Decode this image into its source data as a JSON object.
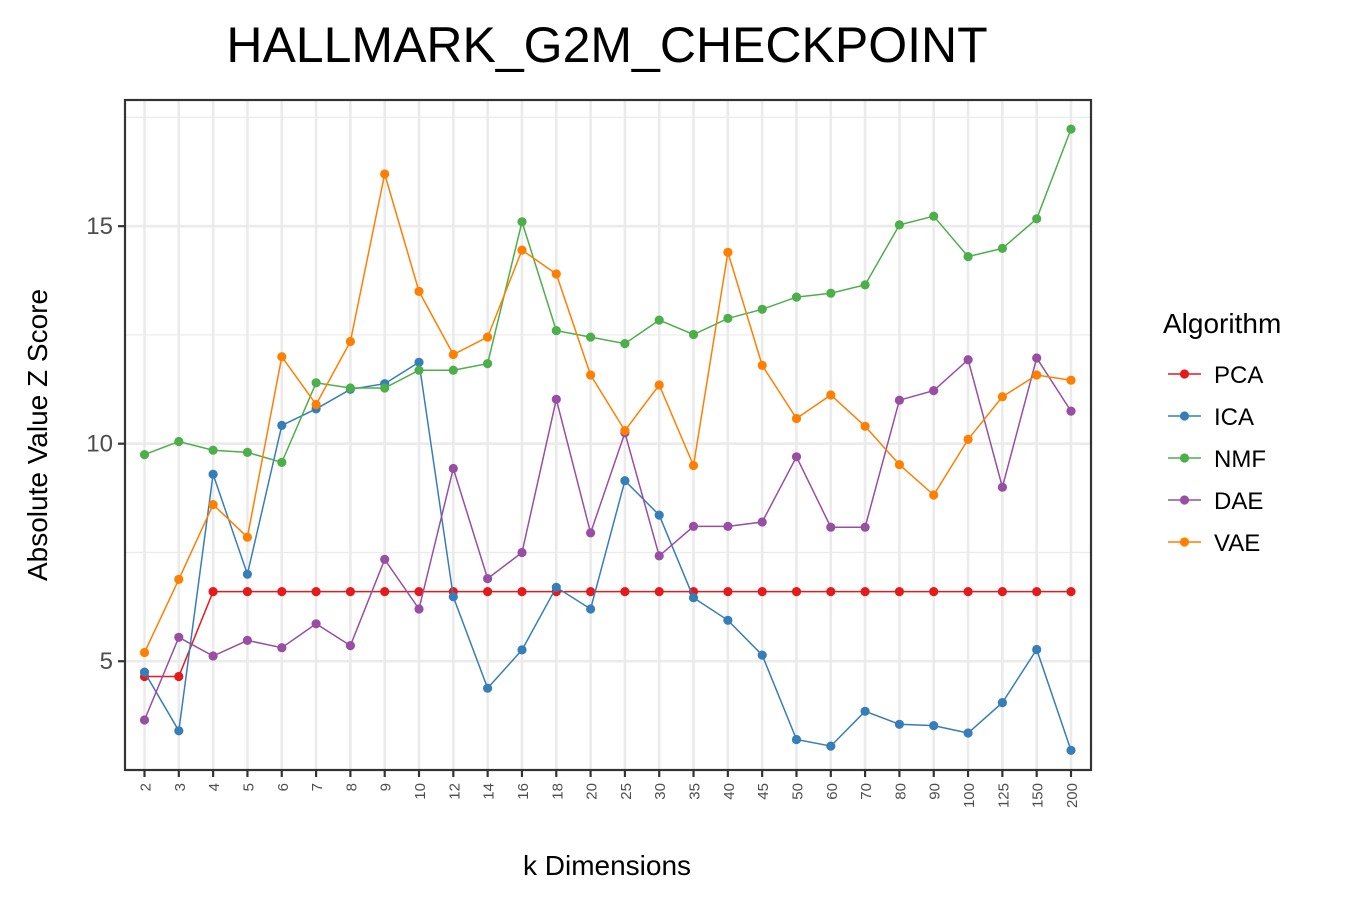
{
  "chart_data": {
    "type": "line",
    "title": "HALLMARK_G2M_CHECKPOINT",
    "xlabel": "k Dimensions",
    "ylabel": "Absolute Value Z Score",
    "categories": [
      "2",
      "3",
      "4",
      "5",
      "6",
      "7",
      "8",
      "9",
      "10",
      "12",
      "14",
      "16",
      "18",
      "20",
      "25",
      "30",
      "35",
      "40",
      "45",
      "50",
      "60",
      "70",
      "80",
      "90",
      "100",
      "125",
      "150",
      "200"
    ],
    "y_ticks": [
      5,
      10,
      15
    ],
    "ylim": [
      2.5,
      17.9
    ],
    "grid": true,
    "legend": {
      "title": "Algorithm",
      "position": "right"
    },
    "series": [
      {
        "name": "PCA",
        "color": "#e41a1c",
        "values": [
          4.65,
          4.65,
          6.6,
          6.6,
          6.6,
          6.6,
          6.6,
          6.6,
          6.6,
          6.6,
          6.6,
          6.6,
          6.6,
          6.6,
          6.6,
          6.6,
          6.6,
          6.6,
          6.6,
          6.6,
          6.6,
          6.6,
          6.6,
          6.6,
          6.6,
          6.6,
          6.6,
          6.6
        ]
      },
      {
        "name": "ICA",
        "color": "#377eb8",
        "values": [
          4.75,
          3.4,
          9.3,
          7.0,
          10.42,
          10.8,
          11.25,
          11.38,
          11.87,
          6.48,
          4.38,
          5.26,
          6.7,
          6.2,
          9.15,
          8.36,
          6.46,
          5.94,
          5.14,
          3.2,
          3.05,
          3.85,
          3.55,
          3.52,
          3.35,
          4.05,
          5.27,
          2.95
        ]
      },
      {
        "name": "NMF",
        "color": "#4daf4a",
        "values": [
          9.75,
          10.05,
          9.85,
          9.8,
          9.57,
          11.4,
          11.28,
          11.28,
          11.69,
          11.69,
          11.84,
          15.1,
          12.6,
          12.45,
          12.3,
          12.84,
          12.51,
          12.88,
          13.09,
          13.37,
          13.46,
          13.65,
          15.03,
          15.23,
          14.3,
          14.49,
          15.17,
          17.23
        ]
      },
      {
        "name": "DAE",
        "color": "#984ea3",
        "values": [
          3.65,
          5.55,
          5.12,
          5.48,
          5.31,
          5.86,
          5.36,
          7.34,
          6.2,
          9.43,
          6.9,
          7.5,
          11.02,
          7.95,
          10.25,
          7.42,
          8.1,
          8.1,
          8.2,
          9.7,
          8.08,
          8.08,
          11.0,
          11.22,
          11.93,
          9.0,
          11.97,
          10.75
        ]
      },
      {
        "name": "VAE",
        "color": "#ff7f00",
        "values": [
          5.2,
          6.88,
          8.6,
          7.85,
          12.0,
          10.9,
          12.35,
          16.2,
          13.5,
          12.05,
          12.45,
          14.45,
          13.9,
          11.58,
          10.3,
          11.35,
          9.5,
          14.4,
          11.8,
          10.58,
          11.12,
          10.4,
          9.52,
          8.82,
          10.1,
          11.08,
          11.58,
          11.46
        ]
      }
    ]
  }
}
